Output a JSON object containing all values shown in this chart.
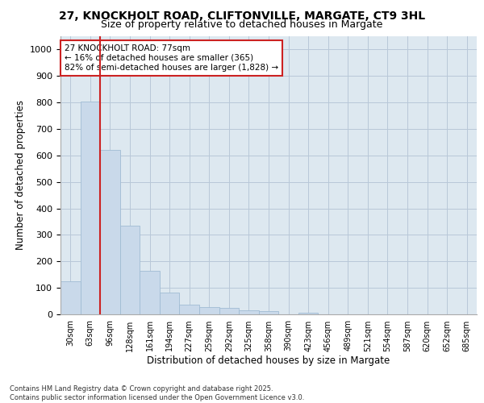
{
  "title_line1": "27, KNOCKHOLT ROAD, CLIFTONVILLE, MARGATE, CT9 3HL",
  "title_line2": "Size of property relative to detached houses in Margate",
  "xlabel": "Distribution of detached houses by size in Margate",
  "ylabel": "Number of detached properties",
  "bar_labels": [
    "30sqm",
    "63sqm",
    "96sqm",
    "128sqm",
    "161sqm",
    "194sqm",
    "227sqm",
    "259sqm",
    "292sqm",
    "325sqm",
    "358sqm",
    "390sqm",
    "423sqm",
    "456sqm",
    "489sqm",
    "521sqm",
    "554sqm",
    "587sqm",
    "620sqm",
    "652sqm",
    "685sqm"
  ],
  "bar_values": [
    125,
    805,
    622,
    335,
    165,
    82,
    38,
    28,
    25,
    16,
    12,
    0,
    7,
    0,
    0,
    0,
    0,
    0,
    0,
    0,
    0
  ],
  "bar_color": "#c9d9ea",
  "bar_edge_color": "#a0bcd4",
  "grid_color": "#b8c8d8",
  "background_color": "#dde8f0",
  "vline_color": "#cc2222",
  "annotation_text": "27 KNOCKHOLT ROAD: 77sqm\n← 16% of detached houses are smaller (365)\n82% of semi-detached houses are larger (1,828) →",
  "annotation_box_edgecolor": "#cc2222",
  "annotation_box_facecolor": "#ffffff",
  "footer_text": "Contains HM Land Registry data © Crown copyright and database right 2025.\nContains public sector information licensed under the Open Government Licence v3.0.",
  "ylim": [
    0,
    1050
  ],
  "yticks": [
    0,
    100,
    200,
    300,
    400,
    500,
    600,
    700,
    800,
    900,
    1000
  ]
}
